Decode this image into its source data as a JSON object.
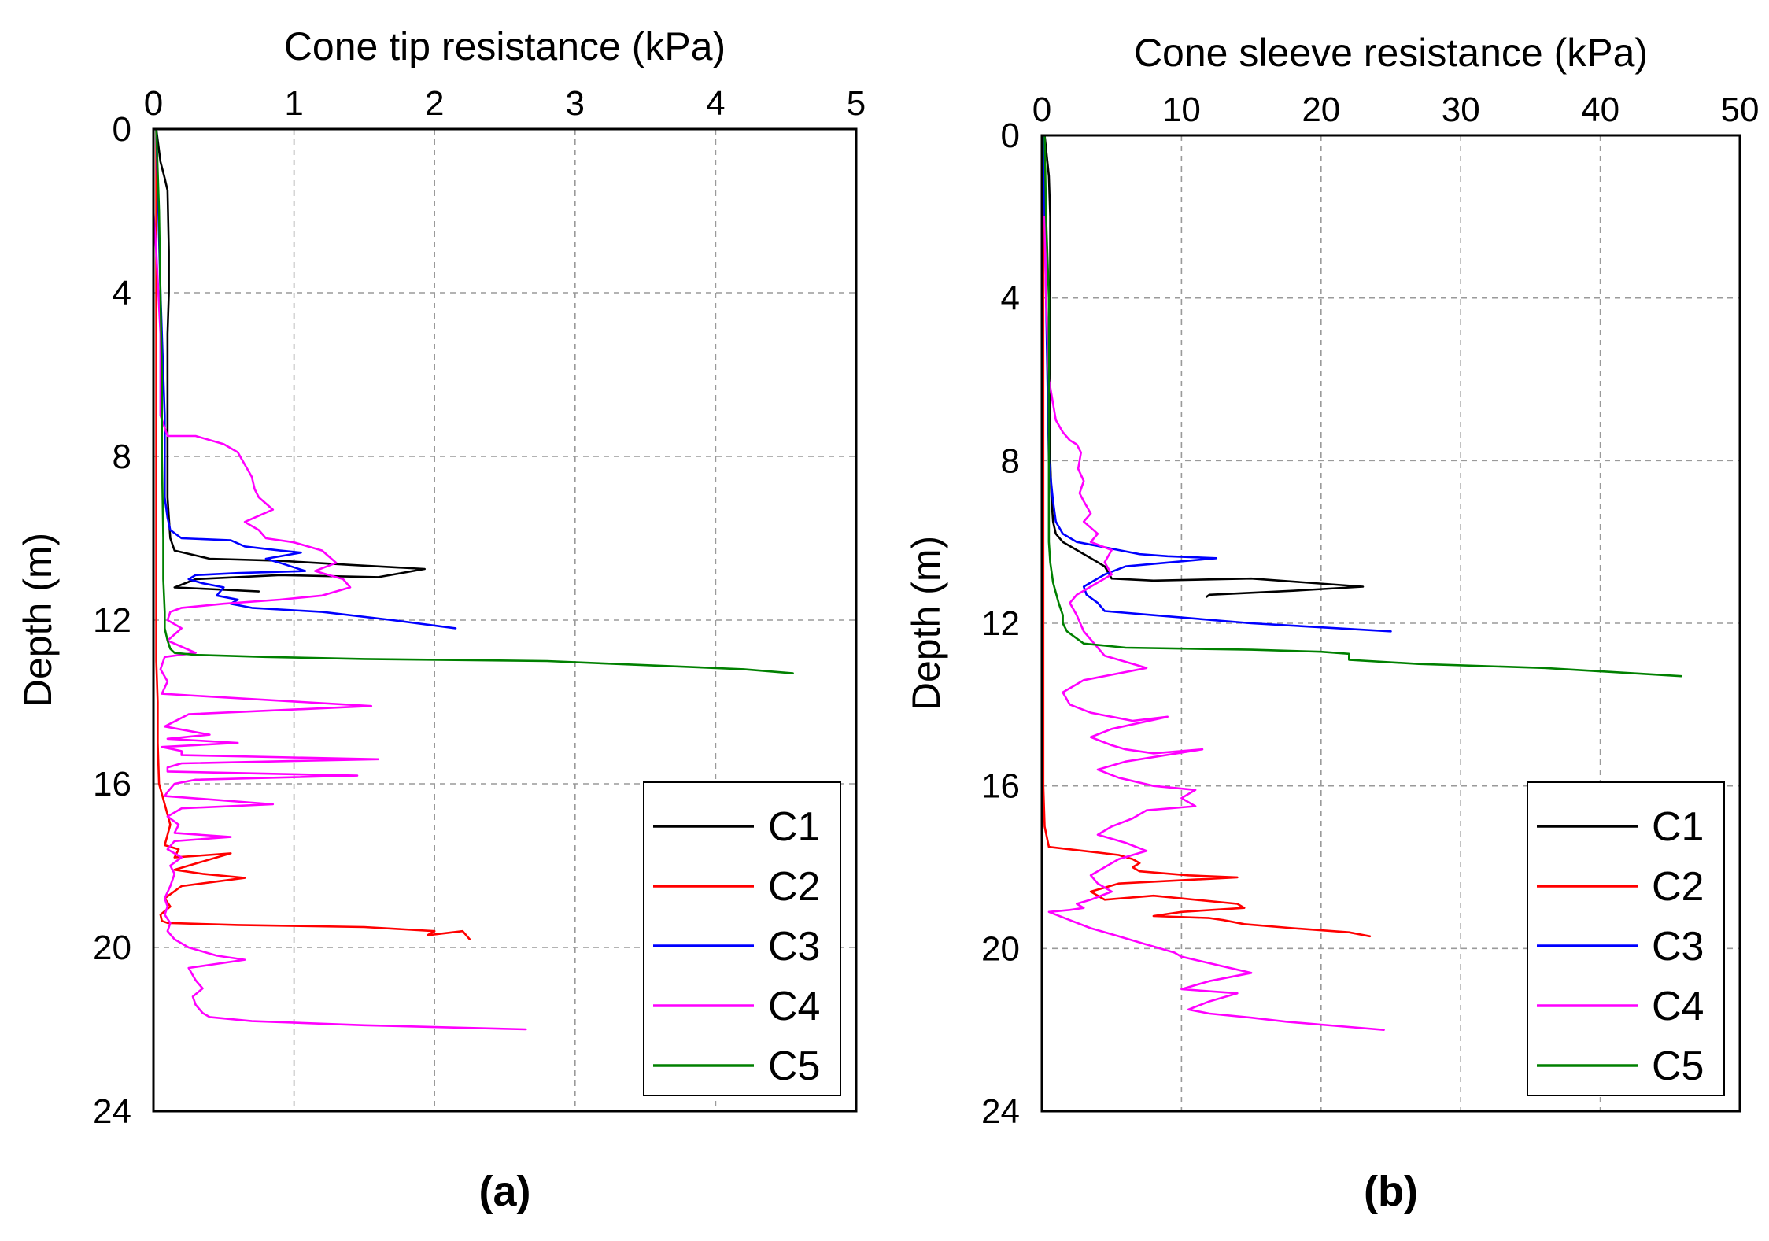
{
  "chart_data": [
    {
      "type": "line",
      "panel_label": "(a)",
      "title": "",
      "xlabel": "Cone tip resistance (kPa)",
      "ylabel": "Depth (m)",
      "xlim": [
        0,
        5
      ],
      "ylim": [
        0,
        24
      ],
      "y_inverted": true,
      "x_axis_position": "top",
      "xticks": [
        0,
        1,
        2,
        3,
        4,
        5
      ],
      "yticks": [
        0,
        4,
        8,
        12,
        16,
        20,
        24
      ],
      "xtick_labels": [
        "0",
        "1",
        "2",
        "3",
        "4",
        "5"
      ],
      "ytick_labels": [
        "0",
        "4",
        "8",
        "12",
        "16",
        "20",
        "24"
      ],
      "grid": true,
      "legend_position": "bottom-right",
      "series": [
        {
          "name": "C1",
          "color": "#000000",
          "x": [
            0.02,
            0.05,
            0.08,
            0.1,
            0.11,
            0.11,
            0.1,
            0.1,
            0.1,
            0.1,
            0.1,
            0.11,
            0.12,
            0.15,
            0.4,
            0.9,
            1.4,
            1.93,
            1.6,
            0.9,
            0.3,
            0.15,
            0.45,
            0.75
          ],
          "y": [
            0,
            0.8,
            1.2,
            1.5,
            3,
            4,
            5,
            6,
            7,
            8,
            9,
            9.5,
            10,
            10.3,
            10.5,
            10.55,
            10.65,
            10.75,
            10.95,
            10.9,
            11.0,
            11.2,
            11.25,
            11.3
          ]
        },
        {
          "name": "C2",
          "color": "#ff0000",
          "x": [
            0.02,
            0.02,
            0.02,
            0.02,
            0.02,
            0.03,
            0.03,
            0.04,
            0.08,
            0.12,
            0.08,
            0.18,
            0.15,
            0.55,
            0.15,
            0.35,
            0.65,
            0.2,
            0.08,
            0.12,
            0.05,
            0.06,
            0.1,
            0.6,
            1.5,
            2.0,
            1.95,
            2.2,
            2.25
          ],
          "y": [
            0,
            4,
            8,
            12,
            13,
            14,
            15,
            16,
            16.5,
            17,
            17.5,
            17.6,
            17.8,
            17.7,
            18.1,
            18.2,
            18.3,
            18.5,
            18.8,
            19.0,
            19.2,
            19.35,
            19.4,
            19.45,
            19.5,
            19.6,
            19.7,
            19.6,
            19.8
          ]
        },
        {
          "name": "C3",
          "color": "#0000ff",
          "x": [
            0.02,
            0.05,
            0.08,
            0.08,
            0.08,
            0.1,
            0.12,
            0.2,
            0.55,
            0.65,
            0.9,
            1.05,
            0.8,
            0.9,
            1.08,
            0.6,
            0.3,
            0.25,
            0.35,
            0.5,
            0.45,
            0.6,
            0.55,
            0.7,
            1.2,
            1.7,
            2.15
          ],
          "y": [
            0,
            4,
            7,
            8,
            9,
            9.5,
            9.8,
            10.0,
            10.05,
            10.2,
            10.3,
            10.35,
            10.5,
            10.6,
            10.8,
            10.85,
            10.9,
            11.0,
            11.1,
            11.2,
            11.4,
            11.5,
            11.6,
            11.7,
            11.8,
            12.0,
            12.2
          ]
        },
        {
          "name": "C4",
          "color": "#ff00ff",
          "x": [
            0.0,
            0.02,
            0.05,
            0.05,
            0.05,
            0.1,
            0.3,
            0.5,
            0.6,
            0.65,
            0.7,
            0.72,
            0.75,
            0.85,
            0.65,
            0.75,
            0.8,
            1.0,
            1.2,
            1.3,
            1.15,
            1.35,
            1.4,
            1.2,
            0.9,
            0.5,
            0.2,
            0.12,
            0.1,
            0.2,
            0.1,
            0.3,
            0.08,
            0.05,
            0.1,
            0.06,
            1.55,
            0.25,
            0.08,
            0.4,
            0.1,
            0.6,
            0.06,
            0.2,
            0.2,
            1.6,
            0.2,
            0.1,
            0.1,
            1.45,
            0.3,
            0.15,
            0.1,
            0.08,
            0.85,
            0.2,
            0.1,
            0.18,
            0.15,
            0.55,
            0.15,
            0.1,
            0.2,
            0.12,
            0.15,
            0.12,
            0.08,
            0.1,
            0.08,
            0.12,
            0.1,
            0.15,
            0.25,
            0.45,
            0.65,
            0.25,
            0.3,
            0.35,
            0.28,
            0.3,
            0.35,
            0.4,
            0.7,
            1.5,
            2.65
          ],
          "y": [
            2,
            3,
            5,
            6,
            7,
            7.5,
            7.5,
            7.7,
            7.9,
            8.2,
            8.5,
            8.8,
            9.0,
            9.3,
            9.6,
            9.8,
            10.0,
            10.1,
            10.3,
            10.6,
            10.8,
            11.0,
            11.2,
            11.4,
            11.5,
            11.6,
            11.7,
            11.8,
            12.0,
            12.2,
            12.5,
            12.8,
            12.9,
            13.2,
            13.5,
            13.8,
            14.1,
            14.3,
            14.6,
            14.8,
            14.9,
            15.0,
            15.1,
            15.2,
            15.3,
            15.4,
            15.5,
            15.6,
            15.7,
            15.8,
            15.9,
            16.0,
            16.2,
            16.3,
            16.5,
            16.6,
            16.8,
            17.0,
            17.2,
            17.3,
            17.4,
            17.6,
            17.8,
            18.0,
            18.2,
            18.5,
            18.8,
            19.0,
            19.2,
            19.4,
            19.6,
            19.8,
            20.0,
            20.2,
            20.3,
            20.5,
            20.8,
            21.0,
            21.2,
            21.4,
            21.6,
            21.7,
            21.8,
            21.9,
            22.0
          ]
        },
        {
          "name": "C5",
          "color": "#008000",
          "x": [
            0.02,
            0.04,
            0.05,
            0.06,
            0.06,
            0.07,
            0.07,
            0.08,
            0.08,
            0.1,
            0.12,
            0.15,
            0.3,
            0.8,
            1.5,
            2.8,
            3.5,
            4.2,
            4.55
          ],
          "y": [
            0,
            2,
            4,
            6,
            8,
            10,
            11,
            11.8,
            12.2,
            12.5,
            12.7,
            12.8,
            12.85,
            12.9,
            12.95,
            13.0,
            13.1,
            13.2,
            13.3
          ]
        }
      ]
    },
    {
      "type": "line",
      "panel_label": "(b)",
      "title": "",
      "xlabel": "Cone sleeve resistance (kPa)",
      "ylabel": "Depth (m)",
      "xlim": [
        0,
        50
      ],
      "ylim": [
        0,
        24
      ],
      "y_inverted": true,
      "x_axis_position": "top",
      "xticks": [
        0,
        10,
        20,
        30,
        40,
        50
      ],
      "yticks": [
        0,
        4,
        8,
        12,
        16,
        20,
        24
      ],
      "xtick_labels": [
        "0",
        "10",
        "20",
        "30",
        "40",
        "50"
      ],
      "ytick_labels": [
        "0",
        "4",
        "8",
        "12",
        "16",
        "20",
        "24"
      ],
      "grid": true,
      "legend_position": "bottom-right",
      "series": [
        {
          "name": "C1",
          "color": "#000000",
          "x": [
            0.2,
            0.5,
            0.6,
            0.6,
            0.6,
            0.6,
            0.7,
            0.8,
            1.0,
            1.5,
            2.5,
            3.5,
            4.5,
            5,
            8,
            15,
            23,
            18,
            12,
            11.8
          ],
          "y": [
            0,
            1,
            2,
            4,
            6,
            8,
            9,
            9.5,
            9.8,
            10.0,
            10.2,
            10.4,
            10.6,
            10.9,
            10.95,
            10.9,
            11.1,
            11.2,
            11.3,
            11.35
          ]
        },
        {
          "name": "C2",
          "color": "#ff0000",
          "x": [
            0.1,
            0.1,
            0.1,
            0.1,
            0.1,
            0.2,
            0.5,
            3,
            5.5,
            6.5,
            7.0,
            6.5,
            7.0,
            10.5,
            14.0,
            5.5,
            3.5,
            4.5,
            8.0,
            14.0,
            14.5,
            10.0,
            8.0,
            12.0,
            13.0,
            14.5,
            18.0,
            22.0,
            23.5
          ],
          "y": [
            0,
            4,
            8,
            12,
            16,
            17.0,
            17.5,
            17.6,
            17.7,
            17.8,
            17.9,
            18.0,
            18.1,
            18.2,
            18.25,
            18.4,
            18.6,
            18.8,
            18.7,
            18.9,
            19.0,
            19.1,
            19.2,
            19.25,
            19.3,
            19.4,
            19.5,
            19.6,
            19.7
          ]
        },
        {
          "name": "C3",
          "color": "#0000ff",
          "x": [
            0.1,
            0.3,
            0.4,
            0.5,
            0.8,
            1.0,
            1.5,
            2.5,
            4.0,
            5.5,
            7.0,
            9.0,
            12.5,
            6.0,
            4.5,
            3.5,
            3.0,
            3.2,
            4.0,
            4.5,
            8.0,
            15.0,
            25.0
          ],
          "y": [
            0,
            4,
            6,
            8,
            9,
            9.5,
            9.8,
            10.0,
            10.1,
            10.2,
            10.3,
            10.35,
            10.4,
            10.6,
            10.8,
            11.0,
            11.1,
            11.3,
            11.5,
            11.7,
            11.8,
            12.0,
            12.2
          ]
        },
        {
          "name": "C4",
          "color": "#ff00ff",
          "x": [
            0.2,
            0.3,
            0.5,
            1.0,
            1.5,
            2.0,
            2.5,
            2.8,
            2.6,
            3.0,
            2.7,
            3.0,
            3.5,
            3.0,
            4.0,
            3.5,
            5.0,
            4.5,
            5.0,
            4.0,
            3.0,
            2.5,
            2.0,
            2.5,
            3.0,
            4.5,
            7.5,
            3.0,
            1.5,
            2.0,
            3.5,
            5.0,
            6.5,
            9.0,
            5.0,
            3.5,
            5.0,
            6.0,
            8.0,
            11.5,
            6.0,
            4.0,
            5.5,
            8.0,
            11.0,
            10.0,
            11.0,
            7.5,
            6.5,
            5.0,
            4.0,
            6.0,
            7.5,
            5.5,
            4.5,
            3.5,
            4.0,
            5.0,
            3.5,
            2.5,
            3.0,
            2.0,
            0.5,
            2.0,
            3.5,
            5.5,
            7.5,
            9.5,
            10.0,
            15.0,
            12.0,
            10.0,
            14.0,
            12.0,
            10.5,
            12.0,
            15.0,
            17.5,
            21.0,
            24.5
          ],
          "y": [
            2,
            4,
            6,
            7,
            7.3,
            7.5,
            7.6,
            7.8,
            8.2,
            8.5,
            8.8,
            9.0,
            9.3,
            9.5,
            9.8,
            10.0,
            10.2,
            10.5,
            10.8,
            11.0,
            11.2,
            11.3,
            11.5,
            11.8,
            12.2,
            12.8,
            13.1,
            13.4,
            13.7,
            14.0,
            14.2,
            14.3,
            14.4,
            14.3,
            14.6,
            14.8,
            15.0,
            15.1,
            15.2,
            15.1,
            15.4,
            15.6,
            15.8,
            16.0,
            16.1,
            16.3,
            16.5,
            16.6,
            16.8,
            17.0,
            17.2,
            17.4,
            17.6,
            17.8,
            18.0,
            18.2,
            18.4,
            18.6,
            18.8,
            18.9,
            19.0,
            19.05,
            19.1,
            19.3,
            19.5,
            19.7,
            19.9,
            20.1,
            20.2,
            20.6,
            20.8,
            21.0,
            21.1,
            21.3,
            21.5,
            21.6,
            21.7,
            21.8,
            21.9,
            22.0
          ]
        },
        {
          "name": "C5",
          "color": "#008000",
          "x": [
            0.2,
            0.3,
            0.5,
            0.5,
            0.5,
            0.5,
            0.5,
            0.6,
            0.8,
            1.2,
            1.5,
            1.5,
            1.8,
            3.0,
            6.0,
            15.0,
            20.0,
            22.0,
            22.0,
            27.0,
            36.0,
            45.8
          ],
          "y": [
            0,
            2,
            4,
            6,
            8,
            9,
            10,
            10.5,
            11,
            11.5,
            11.8,
            12.0,
            12.2,
            12.5,
            12.6,
            12.65,
            12.7,
            12.75,
            12.9,
            13.0,
            13.1,
            13.3
          ]
        }
      ]
    }
  ]
}
